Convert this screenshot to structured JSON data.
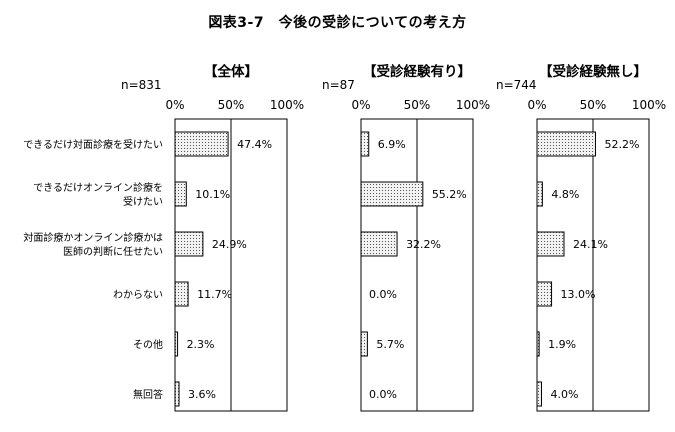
{
  "title": "図表3-7　今後の受診についての考え方",
  "categories": [
    [
      "できるだけ対面診療を受けたい"
    ],
    [
      "できるだけオンライン診療を",
      "受けたい"
    ],
    [
      "対面診療かオンライン診療かは",
      "医師の判断に任せたい"
    ],
    [
      "わからない"
    ],
    [
      "その他"
    ],
    [
      "無回答"
    ]
  ],
  "ticks": [
    "0%",
    "50%",
    "100%"
  ],
  "chart_data": [
    {
      "type": "bar",
      "orientation": "horizontal",
      "title": "【全体】",
      "n_label": "n=831",
      "xlim": [
        0,
        100
      ],
      "values": [
        47.4,
        10.1,
        24.9,
        11.7,
        2.3,
        3.6
      ],
      "labels": [
        "47.4%",
        "10.1%",
        "24.9%",
        "11.7%",
        "2.3%",
        "3.6%"
      ]
    },
    {
      "type": "bar",
      "orientation": "horizontal",
      "title": "【受診経験有り】",
      "n_label": "n=87",
      "xlim": [
        0,
        100
      ],
      "values": [
        6.9,
        55.2,
        32.2,
        0.0,
        5.7,
        0.0
      ],
      "labels": [
        "6.9%",
        "55.2%",
        "32.2%",
        "0.0%",
        "5.7%",
        "0.0%"
      ]
    },
    {
      "type": "bar",
      "orientation": "horizontal",
      "title": "【受診経験無し】",
      "n_label": "n=744",
      "xlim": [
        0,
        100
      ],
      "values": [
        52.2,
        4.8,
        24.1,
        13.0,
        1.9,
        4.0
      ],
      "labels": [
        "52.2%",
        "4.8%",
        "24.1%",
        "13.0%",
        "1.9%",
        "4.0%"
      ]
    }
  ],
  "colors": {
    "bar_fill": "#f2f2f2",
    "dots": "#555555",
    "stroke": "#000000"
  }
}
